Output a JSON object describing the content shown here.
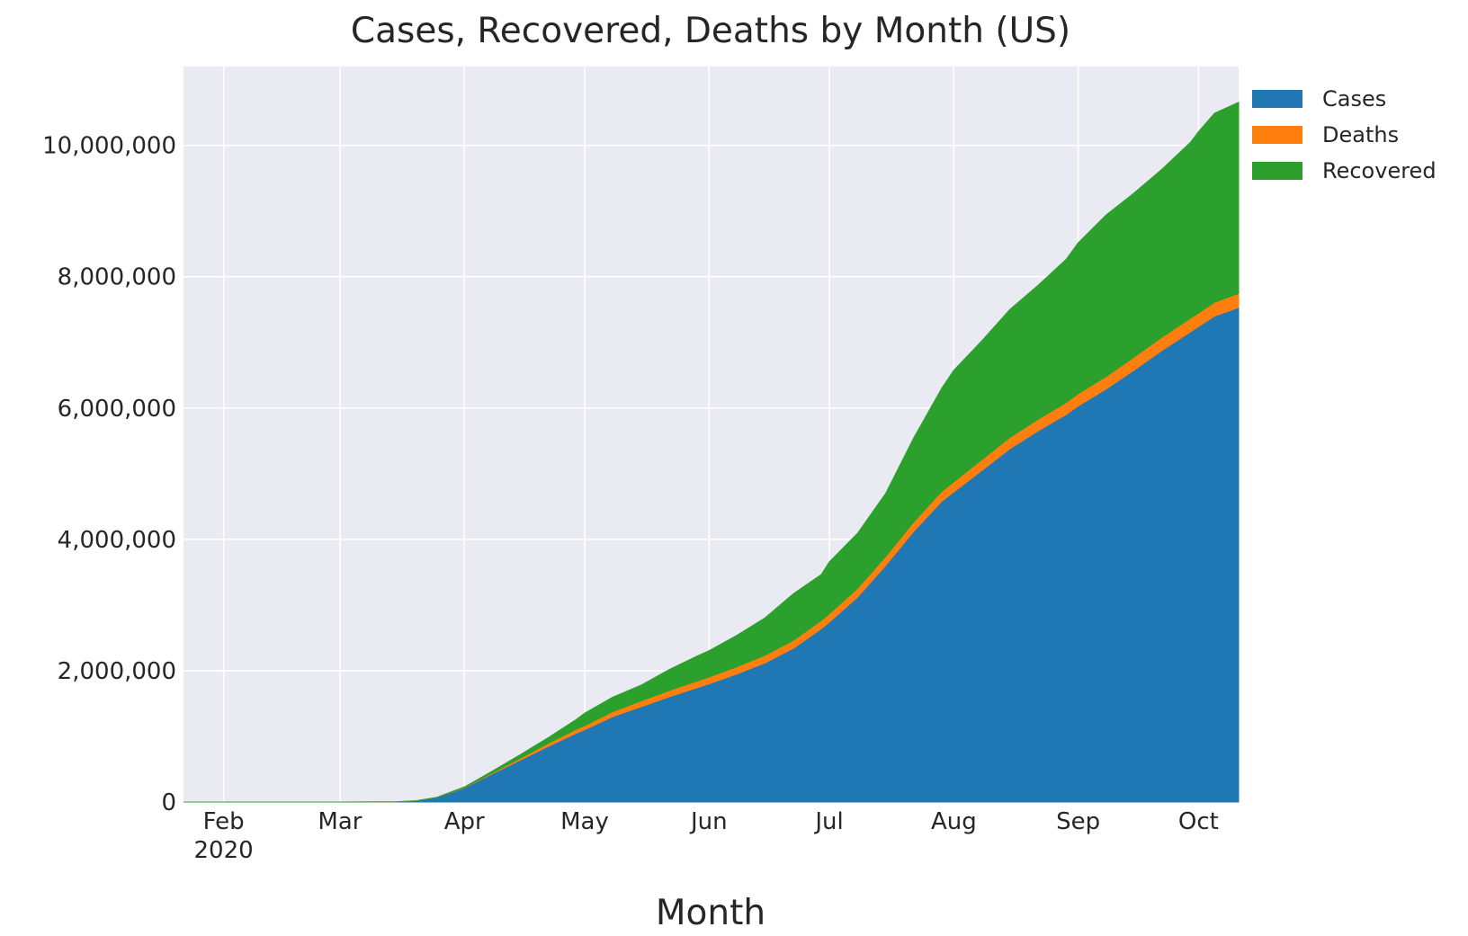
{
  "chart_data": {
    "type": "area",
    "stacked": true,
    "title": "Cases, Recovered, Deaths by Month (US)",
    "xlabel": "Month",
    "ylabel": "",
    "x_ticks": [
      {
        "date": "2020-02-01",
        "label": "Feb",
        "sublabel": "2020"
      },
      {
        "date": "2020-03-01",
        "label": "Mar",
        "sublabel": ""
      },
      {
        "date": "2020-04-01",
        "label": "Apr",
        "sublabel": ""
      },
      {
        "date": "2020-05-01",
        "label": "May",
        "sublabel": ""
      },
      {
        "date": "2020-06-01",
        "label": "Jun",
        "sublabel": ""
      },
      {
        "date": "2020-07-01",
        "label": "Jul",
        "sublabel": ""
      },
      {
        "date": "2020-08-01",
        "label": "Aug",
        "sublabel": ""
      },
      {
        "date": "2020-09-01",
        "label": "Sep",
        "sublabel": ""
      },
      {
        "date": "2020-10-01",
        "label": "Oct",
        "sublabel": ""
      }
    ],
    "xlim": [
      "2020-01-22",
      "2020-10-11"
    ],
    "y_ticks": [
      {
        "value": 0,
        "label": "0"
      },
      {
        "value": 2000000,
        "label": "2,000,000"
      },
      {
        "value": 4000000,
        "label": "4,000,000"
      },
      {
        "value": 6000000,
        "label": "6,000,000"
      },
      {
        "value": 8000000,
        "label": "8,000,000"
      },
      {
        "value": 10000000,
        "label": "10,000,000"
      }
    ],
    "ylim": [
      0,
      11200000
    ],
    "grid": true,
    "legend_position": "outside-top-right",
    "x": [
      "2020-01-22",
      "2020-03-01",
      "2020-03-10",
      "2020-03-15",
      "2020-03-20",
      "2020-03-25",
      "2020-04-01",
      "2020-04-08",
      "2020-04-15",
      "2020-04-22",
      "2020-04-29",
      "2020-05-01",
      "2020-05-08",
      "2020-05-15",
      "2020-05-22",
      "2020-05-29",
      "2020-06-01",
      "2020-06-08",
      "2020-06-15",
      "2020-06-22",
      "2020-06-29",
      "2020-07-01",
      "2020-07-08",
      "2020-07-15",
      "2020-07-22",
      "2020-07-29",
      "2020-08-01",
      "2020-08-08",
      "2020-08-15",
      "2020-08-22",
      "2020-08-29",
      "2020-09-01",
      "2020-09-08",
      "2020-09-15",
      "2020-09-22",
      "2020-09-29",
      "2020-10-01",
      "2020-10-05",
      "2020-10-11"
    ],
    "series": [
      {
        "name": "Cases",
        "color": "#1f77b4",
        "values": [
          1,
          30,
          960,
          3500,
          19000,
          66000,
          215000,
          430000,
          640000,
          850000,
          1050000,
          1100000,
          1300000,
          1450000,
          1600000,
          1740000,
          1800000,
          1950000,
          2120000,
          2340000,
          2640000,
          2740000,
          3120000,
          3600000,
          4120000,
          4580000,
          4720000,
          5050000,
          5380000,
          5650000,
          5900000,
          6030000,
          6290000,
          6580000,
          6880000,
          7160000,
          7240000,
          7400000,
          7530000
        ]
      },
      {
        "name": "Deaths",
        "color": "#ff7f0e",
        "values": [
          0,
          1,
          30,
          70,
          250,
          1000,
          5000,
          14000,
          29000,
          48000,
          61000,
          64000,
          77000,
          88000,
          96000,
          102000,
          105000,
          111000,
          116000,
          121000,
          126000,
          128000,
          132000,
          137000,
          143000,
          151000,
          155000,
          164000,
          172000,
          178000,
          183000,
          186000,
          191000,
          198000,
          202000,
          206000,
          208000,
          210000,
          215000
        ]
      },
      {
        "name": "Recovered",
        "color": "#2ca02c",
        "values": [
          0,
          7,
          50,
          100,
          150,
          2500,
          9000,
          27000,
          55000,
          85000,
          150000,
          190000,
          220000,
          240000,
          320000,
          380000,
          400000,
          480000,
          570000,
          710000,
          700000,
          790000,
          840000,
          960000,
          1280000,
          1570000,
          1700000,
          1810000,
          1950000,
          2040000,
          2180000,
          2300000,
          2460000,
          2500000,
          2560000,
          2680000,
          2760000,
          2880000,
          2910000
        ]
      }
    ],
    "legend": [
      "Cases",
      "Deaths",
      "Recovered"
    ]
  },
  "colors": {
    "plot_background": "#eaeaf2",
    "grid": "#ffffff",
    "text": "#262626"
  }
}
